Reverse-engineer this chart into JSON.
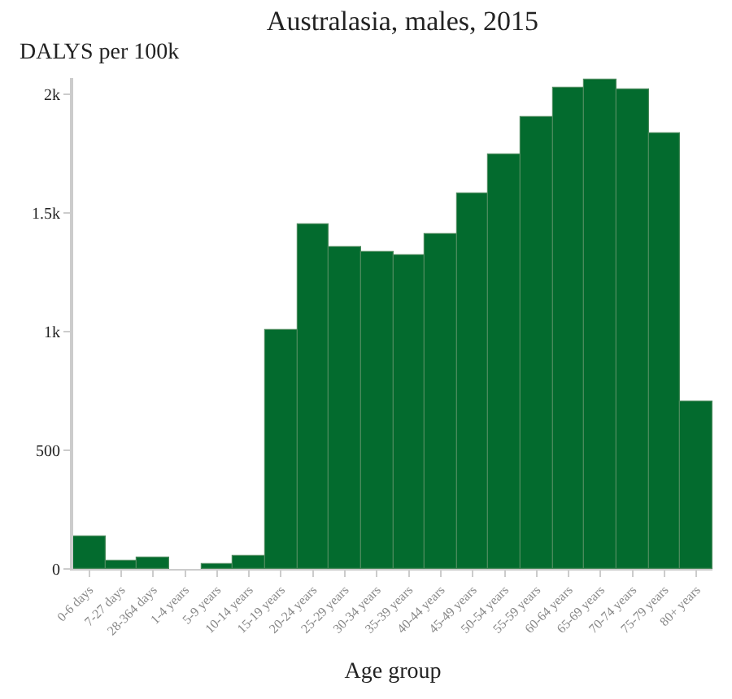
{
  "chart_data": {
    "type": "bar",
    "title": "Australasia, males, 2015",
    "ylabel": "DALYS per 100k",
    "xlabel": "Age group",
    "categories": [
      "0-6 days",
      "7-27 days",
      "28-364 days",
      "1-4 years",
      "5-9 years",
      "10-14 years",
      "15-19 years",
      "20-24 years",
      "25-29 years",
      "30-34 years",
      "35-39 years",
      "40-44 years",
      "45-49 years",
      "50-54 years",
      "55-59 years",
      "60-64 years",
      "65-69 years",
      "70-74 years",
      "75-79 years",
      "80+ years"
    ],
    "values": [
      135,
      35,
      47,
      null,
      20,
      52,
      1010,
      1455,
      1355,
      1335,
      1320,
      1410,
      1585,
      1750,
      1905,
      2030,
      2060,
      2020,
      1840,
      707
    ],
    "color": "#036b2e",
    "ylim": [
      0,
      2070
    ],
    "yticks": [
      0,
      500,
      {
        "value": 1000,
        "label": "1k"
      },
      {
        "value": 1500,
        "label": "1.5k"
      },
      {
        "value": 2000,
        "label": "2k"
      }
    ],
    "legend": false
  }
}
